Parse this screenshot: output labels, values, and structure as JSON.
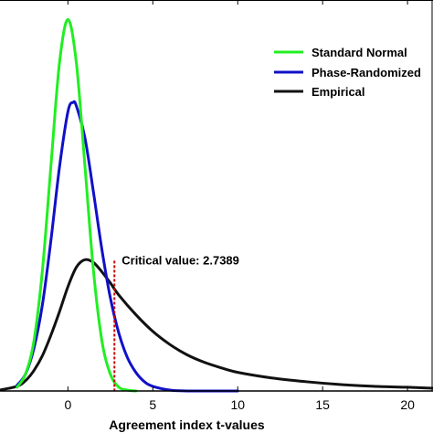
{
  "chart_data": {
    "type": "line",
    "title": "",
    "xlabel": "Agreement index t-values",
    "ylabel": "",
    "xlim": [
      -4,
      21.5
    ],
    "ylim": [
      0,
      0.42
    ],
    "xticks": [
      0,
      5,
      10,
      15,
      20
    ],
    "grid": false,
    "legend_position": "top-right",
    "series": [
      {
        "name": "Standard Normal",
        "color": "#22ee22",
        "x": [
          -3,
          -2.5,
          -2,
          -1.5,
          -1,
          -0.5,
          0,
          0.5,
          1,
          1.5,
          2,
          2.5,
          3,
          3.5,
          4
        ],
        "y": [
          0.004,
          0.018,
          0.054,
          0.13,
          0.242,
          0.352,
          0.399,
          0.352,
          0.242,
          0.13,
          0.054,
          0.018,
          0.004,
          0.001,
          0.0
        ]
      },
      {
        "name": "Phase-Randomized",
        "color": "#1010c8",
        "x": [
          -3,
          -2.5,
          -2,
          -1.5,
          -1,
          -0.5,
          0,
          0.3,
          0.5,
          1,
          1.5,
          2,
          2.5,
          3,
          3.5,
          4,
          4.5,
          5,
          6,
          7,
          8,
          9,
          10
        ],
        "y": [
          0.006,
          0.018,
          0.046,
          0.093,
          0.162,
          0.24,
          0.3,
          0.31,
          0.306,
          0.272,
          0.214,
          0.152,
          0.1,
          0.062,
          0.036,
          0.02,
          0.01,
          0.005,
          0.001,
          0.0,
          0.0,
          0.0,
          0.0
        ]
      },
      {
        "name": "Empirical",
        "color": "#111111",
        "x": [
          -4,
          -3,
          -2.5,
          -2,
          -1.5,
          -1,
          -0.5,
          0,
          0.5,
          1,
          1.5,
          2,
          2.5,
          3,
          4,
          5,
          6,
          7,
          8,
          9,
          10,
          12,
          14,
          16,
          18,
          20,
          21.5
        ],
        "y": [
          0.001,
          0.005,
          0.011,
          0.022,
          0.038,
          0.06,
          0.085,
          0.112,
          0.133,
          0.141,
          0.138,
          0.128,
          0.116,
          0.103,
          0.082,
          0.064,
          0.05,
          0.039,
          0.031,
          0.025,
          0.02,
          0.014,
          0.01,
          0.007,
          0.005,
          0.004,
          0.003
        ]
      }
    ],
    "critical_line": {
      "x": 2.7389,
      "label": "Critical value: 2.7389",
      "color": "#cc0000",
      "y_top": 0.14
    }
  }
}
